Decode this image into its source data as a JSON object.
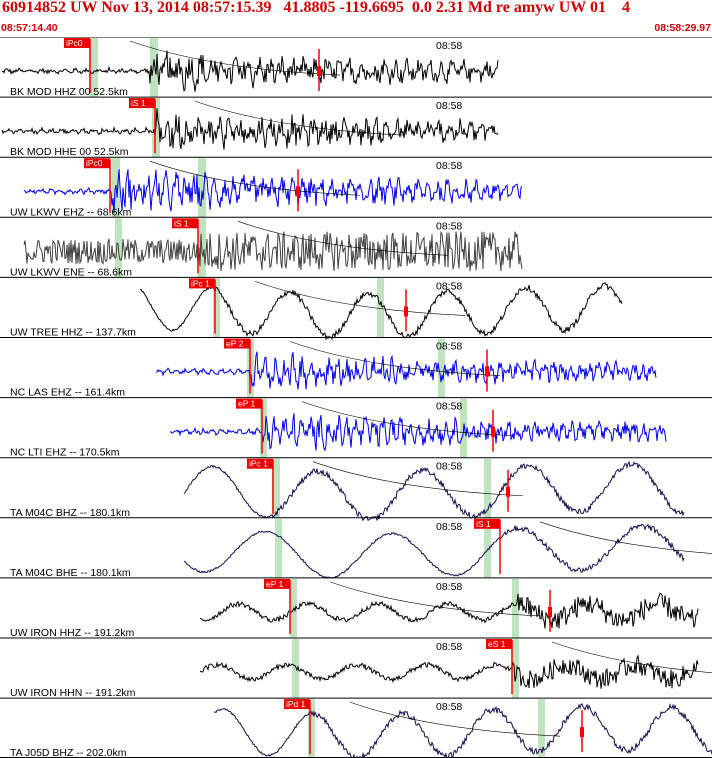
{
  "header": {
    "title": "60914852 UW Nov 13, 2014 08:57:15.39   41.8805 -119.6695  0.0 2.31 Md re amyw UW 01    4",
    "start_time": "08:57:14.40",
    "end_time": "08:58:29.97"
  },
  "minute_mark": "08:58",
  "colors": {
    "red": "#ff0000",
    "pick_bg": "#ee0000",
    "window": "#bfe3bf",
    "black": "#000000",
    "blue": "#0000ee",
    "gray": "#404040",
    "navy": "#1a0a50"
  },
  "traces": [
    {
      "label": "BK MOD HHZ 00 52.5km",
      "pick": "iPc0",
      "color": "black"
    },
    {
      "label": "BK MOD HHE 00 52.5km",
      "pick": "iS 1",
      "color": "black"
    },
    {
      "label": "UW LKWV EHZ -- 68.6km",
      "pick": "iPc0",
      "color": "blue"
    },
    {
      "label": "UW LKWV ENE -- 68.6km",
      "pick": "iS 1",
      "color": "gray"
    },
    {
      "label": "UW TREE HHZ -- 137.7km",
      "pick": "iPc 1",
      "color": "black"
    },
    {
      "label": "NC LAS EHZ -- 161.4km",
      "pick": "eP 2",
      "color": "blue"
    },
    {
      "label": "NC LTI EHZ -- 170.5km",
      "pick": "eP 1",
      "color": "blue"
    },
    {
      "label": "TA M04C BHZ -- 180.1km",
      "pick": "iPc 1",
      "color": "navy"
    },
    {
      "label": "TA M04C BHE -- 180.1km",
      "pick": "iS 1",
      "color": "navy"
    },
    {
      "label": "UW IRON HHZ -- 191.2km",
      "pick": "eP 1",
      "color": "black"
    },
    {
      "label": "UW IRON HHN -- 191.2km",
      "pick": "eS 1",
      "color": "black"
    },
    {
      "label": "TA J05D BHZ -- 202.0km",
      "pick": "iPd 1",
      "color": "navy"
    }
  ]
}
